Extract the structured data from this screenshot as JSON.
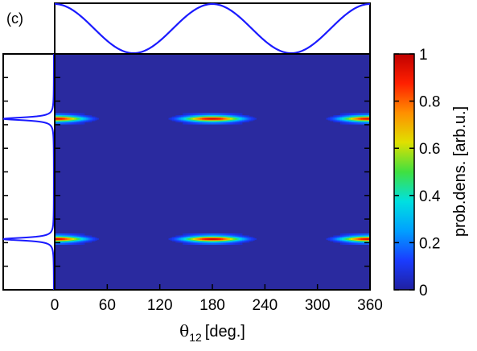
{
  "panel_label": "(c)",
  "chart_data": {
    "type": "heatmap",
    "xlabel_symbol": "θ",
    "xlabel_subscript": "12",
    "xlabel_unit": "[deg.]",
    "xlim": [
      0,
      360
    ],
    "x_ticks": [
      "0",
      "60",
      "120",
      "180",
      "240",
      "300",
      "360"
    ],
    "x_tick_values": [
      0,
      60,
      120,
      180,
      240,
      300,
      360
    ],
    "colorbar": {
      "label": "prob.dens. [arb.u.]",
      "range": [
        0,
        1
      ],
      "ticks": [
        "0",
        "0.2",
        "0.4",
        "0.6",
        "0.8",
        "1"
      ],
      "tick_values": [
        0,
        0.2,
        0.4,
        0.6,
        0.8,
        1
      ],
      "colormap": [
        "#2020a0",
        "#1a3cff",
        "#00a0ff",
        "#00e0e0",
        "#40e040",
        "#e0e000",
        "#ff9000",
        "#ff2000",
        "#c00000"
      ]
    },
    "top_profile": {
      "description_values": "cos(2θ) shaped curve, max at 0/180/360 deg, min at 90/270 deg",
      "x": [
        0,
        45,
        90,
        135,
        180,
        225,
        270,
        315,
        360
      ],
      "y": [
        1,
        0.5,
        0,
        0.5,
        1,
        0.5,
        0,
        0.5,
        1
      ],
      "color": "#1a1aff"
    },
    "bands": [
      {
        "y_fraction": 0.275,
        "peak": 1.0,
        "gap_centers_deg": [
          90,
          270
        ]
      },
      {
        "y_fraction": 0.785,
        "peak": 1.0,
        "gap_centers_deg": [
          90,
          270
        ]
      }
    ],
    "background_value": 0.0,
    "background_color": "#2a2a9f"
  }
}
